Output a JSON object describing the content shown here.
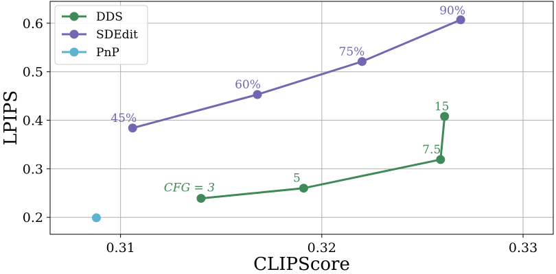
{
  "chart_data": {
    "type": "line",
    "xlabel": "CLIPScore",
    "ylabel": "LPIPS",
    "xlim": [
      0.3065,
      0.3315
    ],
    "ylim": [
      0.165,
      0.645
    ],
    "x_ticks": [
      0.31,
      0.32,
      0.33
    ],
    "x_tick_labels": [
      "0.31",
      "0.32",
      "0.33"
    ],
    "y_ticks": [
      0.2,
      0.3,
      0.4,
      0.5,
      0.6
    ],
    "y_tick_labels": [
      "0.2",
      "0.3",
      "0.4",
      "0.5",
      "0.6"
    ],
    "grid": true,
    "legend_position": "top-left",
    "series": [
      {
        "name": "DDS",
        "color": "#3f8a58",
        "points": [
          {
            "x": 0.314,
            "y": 0.239,
            "label": "CFG = 3",
            "italic": true
          },
          {
            "x": 0.3191,
            "y": 0.26,
            "label": "5"
          },
          {
            "x": 0.3259,
            "y": 0.319,
            "label": "7.5"
          },
          {
            "x": 0.3261,
            "y": 0.408,
            "label": "15"
          }
        ]
      },
      {
        "name": "SDEdit",
        "color": "#7467b2",
        "points": [
          {
            "x": 0.3106,
            "y": 0.384,
            "label": "45%"
          },
          {
            "x": 0.3168,
            "y": 0.453,
            "label": "60%"
          },
          {
            "x": 0.322,
            "y": 0.521,
            "label": "75%"
          },
          {
            "x": 0.3269,
            "y": 0.607,
            "label": "90%"
          }
        ]
      },
      {
        "name": "PnP",
        "color": "#5bb3cf",
        "points": [
          {
            "x": 0.3088,
            "y": 0.199
          }
        ]
      }
    ]
  }
}
